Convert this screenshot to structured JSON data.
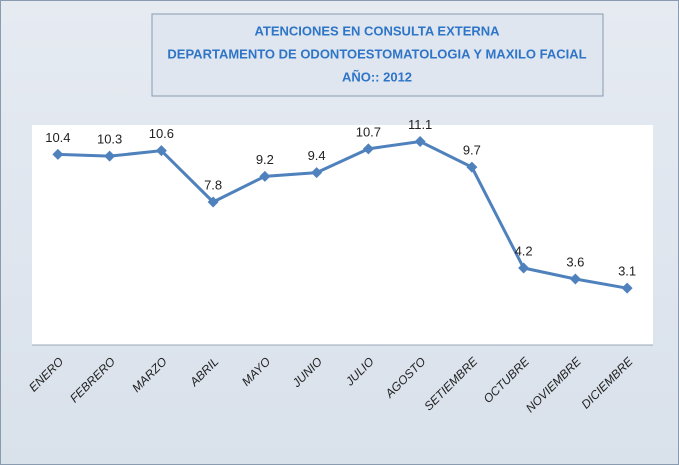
{
  "chart_data": {
    "type": "line",
    "title": [
      "ATENCIONES EN CONSULTA EXTERNA",
      "DEPARTAMENTO DE ODONTOESTOMATOLOGIA Y MAXILO FACIAL",
      "AÑO:: 2012"
    ],
    "categories": [
      "ENERO",
      "FEBRERO",
      "MARZO",
      "ABRIL",
      "MAYO",
      "JUNIO",
      "JULIO",
      "AGOSTO",
      "SETIEMBRE",
      "OCTUBRE",
      "NOVIEMBRE",
      "DICIEMBRE"
    ],
    "values": [
      10.4,
      10.3,
      10.6,
      7.8,
      9.2,
      9.4,
      10.7,
      11.1,
      9.7,
      4.2,
      3.6,
      3.1
    ],
    "color": "#4f81bd",
    "ylim": [
      0,
      12
    ]
  }
}
